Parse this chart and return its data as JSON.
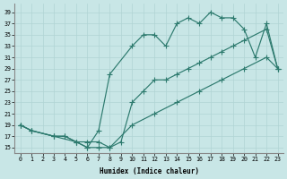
{
  "xlabel": "Humidex (Indice chaleur)",
  "bg_color": "#c8e6e6",
  "grid_color": "#b0d4d4",
  "line_color": "#2d7a6e",
  "xlim": [
    -0.5,
    23.5
  ],
  "ylim": [
    14.0,
    40.5
  ],
  "xticks": [
    0,
    1,
    2,
    3,
    4,
    5,
    6,
    7,
    8,
    9,
    10,
    11,
    12,
    13,
    14,
    15,
    16,
    17,
    18,
    19,
    20,
    21,
    22,
    23
  ],
  "yticks": [
    15,
    17,
    19,
    21,
    23,
    25,
    27,
    29,
    31,
    33,
    35,
    37,
    39
  ],
  "curve_upper_x": [
    0,
    1,
    3,
    5,
    6,
    7,
    8,
    10,
    11,
    12,
    13,
    14,
    15,
    16,
    17,
    18,
    19,
    20,
    21,
    22,
    23
  ],
  "curve_upper_y": [
    19,
    18,
    17,
    16,
    15,
    18,
    28,
    33,
    35,
    35,
    33,
    37,
    38,
    37,
    39,
    38,
    38,
    36,
    31,
    37,
    29
  ],
  "curve_lower_x": [
    0,
    1,
    3,
    4,
    5,
    6,
    7,
    8,
    10,
    12,
    14,
    16,
    18,
    20,
    22,
    23
  ],
  "curve_lower_y": [
    19,
    18,
    17,
    17,
    16,
    16,
    16,
    15,
    19,
    21,
    23,
    25,
    27,
    29,
    31,
    29
  ],
  "curve_mid_x": [
    0,
    1,
    3,
    4,
    5,
    6,
    7,
    8,
    9,
    10,
    11,
    12,
    13,
    14,
    15,
    16,
    17,
    18,
    19,
    20,
    22,
    23
  ],
  "curve_mid_y": [
    19,
    18,
    17,
    17,
    16,
    15,
    15,
    15,
    16,
    23,
    25,
    27,
    27,
    28,
    29,
    30,
    31,
    32,
    33,
    34,
    36,
    29
  ]
}
